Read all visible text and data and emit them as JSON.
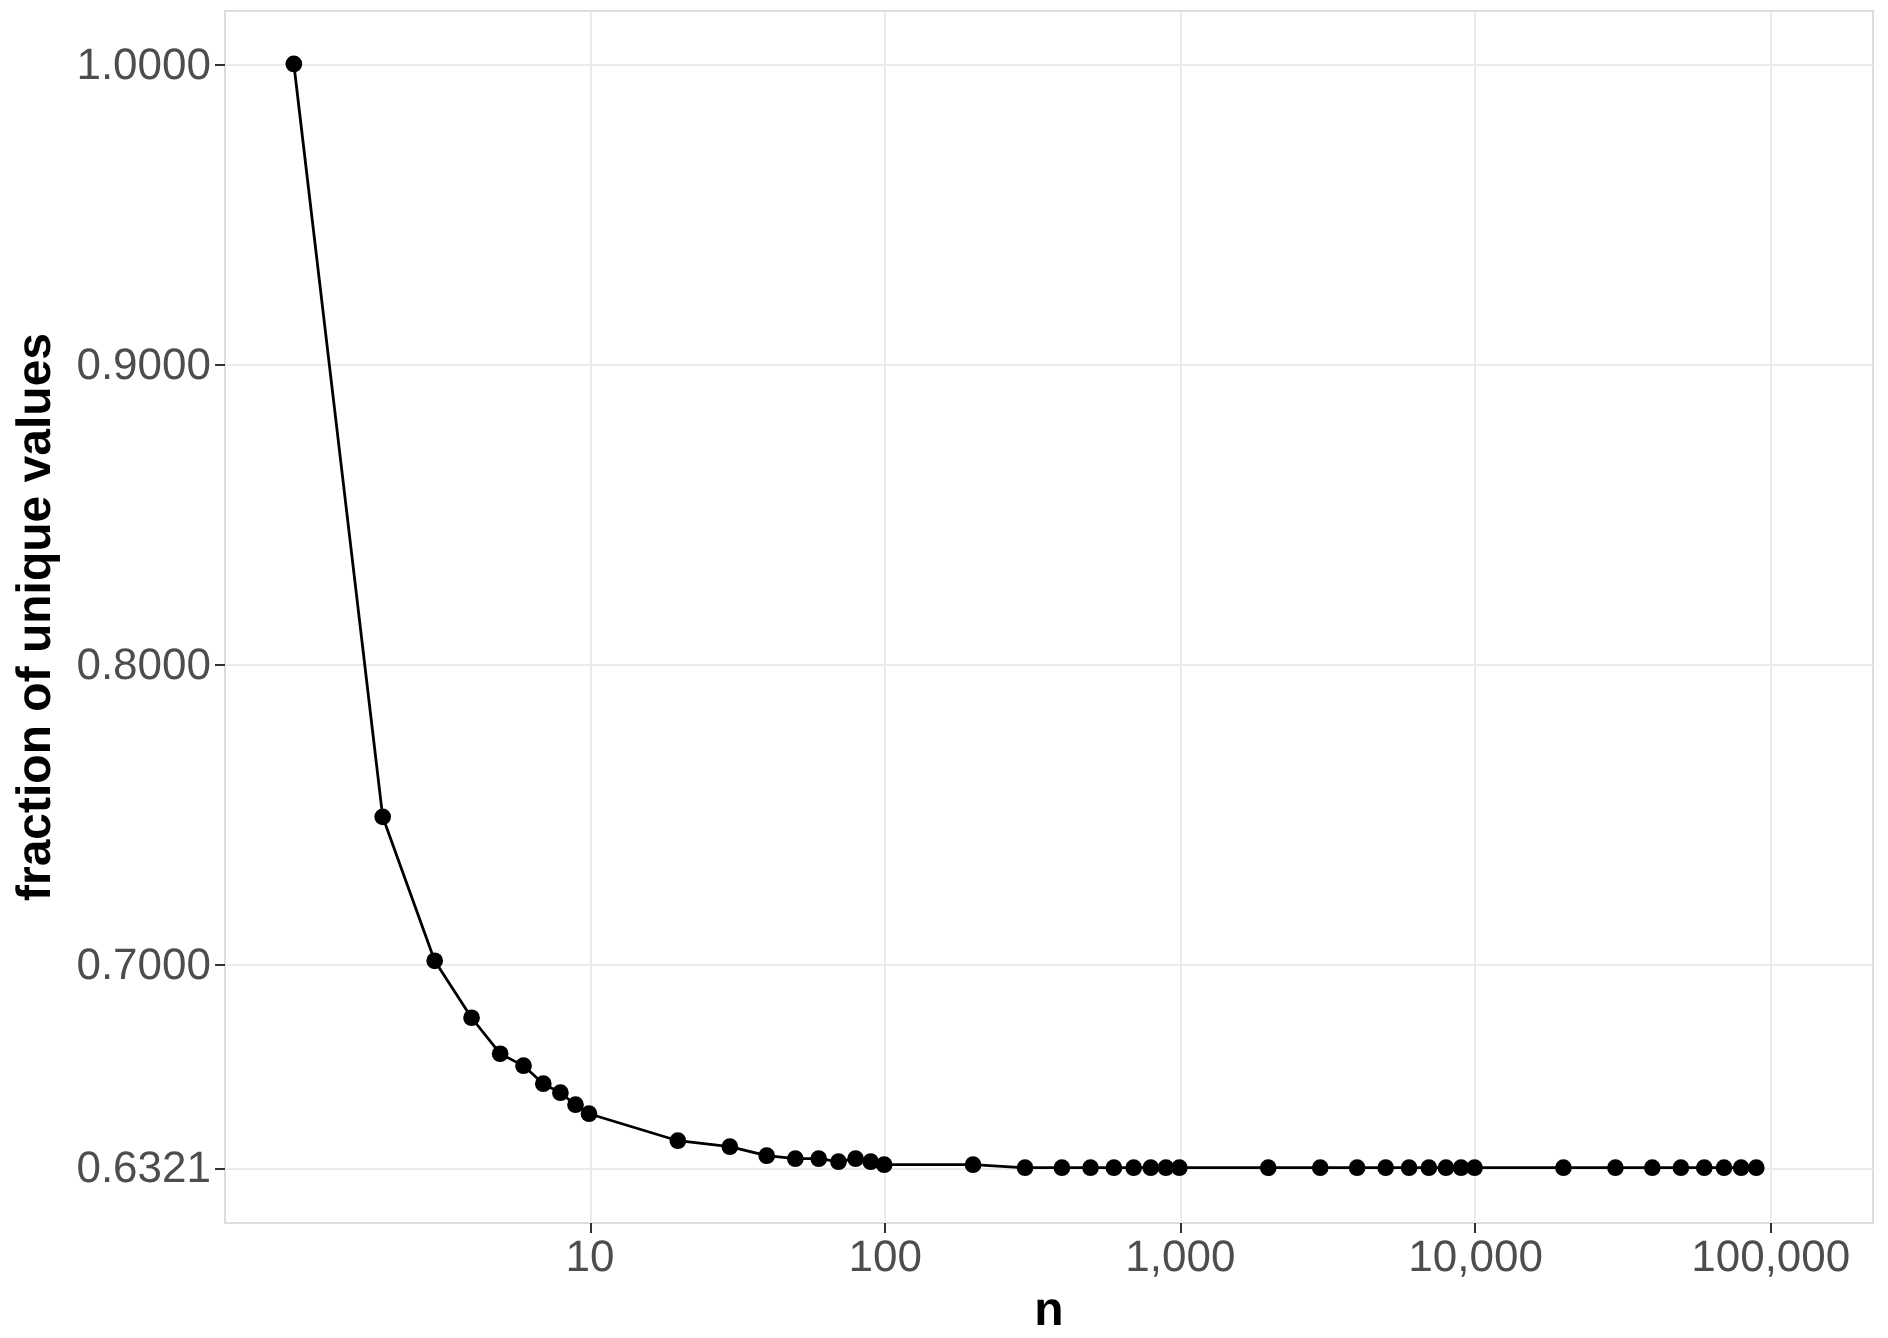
{
  "chart_data": {
    "type": "line",
    "xlabel": "n",
    "ylabel": "fraction of unique values",
    "x": [
      1,
      2,
      3,
      4,
      5,
      6,
      7,
      8,
      9,
      10,
      20,
      30,
      40,
      50,
      60,
      70,
      80,
      90,
      100,
      200,
      300,
      400,
      500,
      600,
      700,
      800,
      900,
      1000,
      2000,
      3000,
      4000,
      5000,
      6000,
      7000,
      8000,
      9000,
      10000,
      20000,
      30000,
      40000,
      50000,
      60000,
      70000,
      80000,
      90000
    ],
    "series": [
      {
        "color": "#000000",
        "values": [
          1.0,
          0.749,
          0.701,
          0.682,
          0.67,
          0.666,
          0.66,
          0.657,
          0.653,
          0.65,
          0.641,
          0.639,
          0.636,
          0.635,
          0.635,
          0.634,
          0.635,
          0.634,
          0.633,
          0.633,
          0.632,
          0.632,
          0.632,
          0.632,
          0.632,
          0.632,
          0.632,
          0.632,
          0.632,
          0.632,
          0.632,
          0.632,
          0.632,
          0.632,
          0.632,
          0.632,
          0.632,
          0.632,
          0.632,
          0.632,
          0.632,
          0.632,
          0.632,
          0.632,
          0.632
        ]
      }
    ],
    "log": "x",
    "xlim": [
      0.58,
      222000
    ],
    "xticks": [
      10,
      100,
      {
        "value": 1000,
        "label": "1,000"
      },
      {
        "value": 10000,
        "label": "10,000"
      },
      {
        "value": 100000,
        "label": "100,000"
      }
    ],
    "ylim": [
      0.6139,
      1.018
    ],
    "yticks": [
      0.6321,
      {
        "value": 0.7,
        "label": "0.7000"
      },
      {
        "value": 0.8,
        "label": "0.8000"
      },
      {
        "value": 0.9,
        "label": "0.9000"
      },
      {
        "value": 1.0,
        "label": "1.0000"
      }
    ],
    "grid": true,
    "marker": "circle",
    "line_style": "solid"
  }
}
